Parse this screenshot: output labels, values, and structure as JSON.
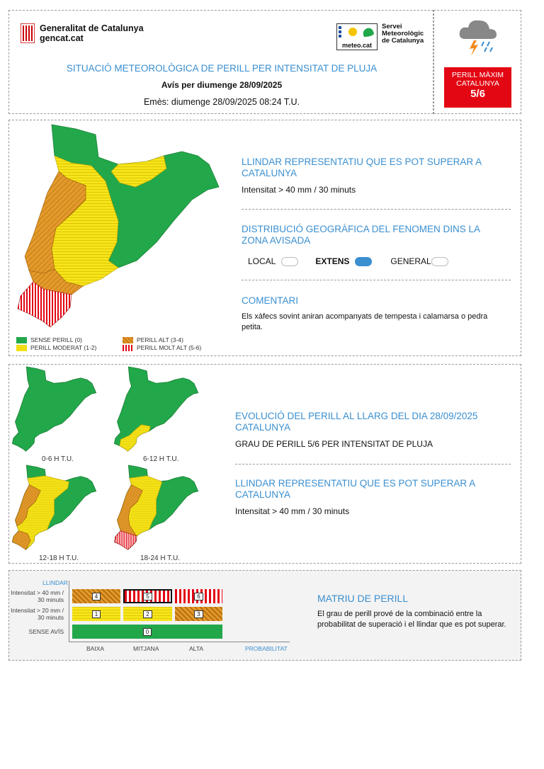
{
  "header": {
    "gencat_name": "Generalitat de Catalunya",
    "gencat_url": "gencat.cat",
    "meteo_logo_text": "meteo.cat",
    "smc_line1": "Servei",
    "smc_line2": "Meteorològic",
    "smc_line3": "de Catalunya",
    "title": "SITUACIÓ METEOROLÒGICA DE PERILL PER INTENSITAT DE PLUJA",
    "subtitle": "Avís per diumenge 28/09/2025",
    "issued": "Emès: diumenge 28/09/2025 08:24 T.U.",
    "max_label_1": "PERILL MÀXIM",
    "max_label_2": "CATALUNYA",
    "max_level": "5/6",
    "weather_icon": "storm-rain-icon"
  },
  "main": {
    "threshold_title": "LLINDAR REPRESENTATIU QUE ES POT SUPERAR A CATALUNYA",
    "threshold_value": "Intensitat > 40 mm / 30 minuts",
    "distribution_title": "DISTRIBUCIÓ GEOGRÀFICA DEL FENOMEN DINS LA ZONA AVISADA",
    "dist_local": "LOCAL",
    "dist_extens": "EXTENS",
    "dist_general": "GENERAL",
    "selected_distribution": "EXTENS",
    "comment_title": "COMENTARI",
    "comment_text": "Els xàfecs sovint aniran acompanyats de tempesta i calamarsa o pedra petita.",
    "legend": {
      "none": "SENSE PERILL (0)",
      "moderate": "PERILL MODERAT (1-2)",
      "high": "PERILL ALT (3-4)",
      "very_high": "PERILL MOLT ALT (5-6)"
    }
  },
  "evolution": {
    "periods": [
      "0-6 H T.U.",
      "6-12 H T.U.",
      "12-18 H T.U.",
      "18-24 H T.U."
    ],
    "evolution_title": "EVOLUCIÓ DEL PERILL AL LLARG DEL DIA 28/09/2025 CATALUNYA",
    "grade_text": "GRAU DE PERILL 5/6 PER INTENSITAT DE PLUJA",
    "threshold_title": "LLINDAR REPRESENTATIU QUE ES POT SUPERAR A CATALUNYA",
    "threshold_value": "Intensitat > 40 mm / 30 minuts"
  },
  "matrix": {
    "y_title": "LLINDAR",
    "row_high": "Intensitat > 40 mm / 30 minuts",
    "row_mid": "Intensitat > 20 mm / 30 minuts",
    "row_none": "SENSE AVÍS",
    "x_baixa": "BAIXA",
    "x_mitjana": "MITJANA",
    "x_alta": "ALTA",
    "x_title": "PROBABILITAT",
    "cells": [
      "4",
      "5",
      "6",
      "1",
      "2",
      "3",
      "0"
    ],
    "title": "MATRIU DE PERILL",
    "text": "El grau de perill prové de la combinació entre la probabilitat de superació i el llindar que es pot superar."
  }
}
